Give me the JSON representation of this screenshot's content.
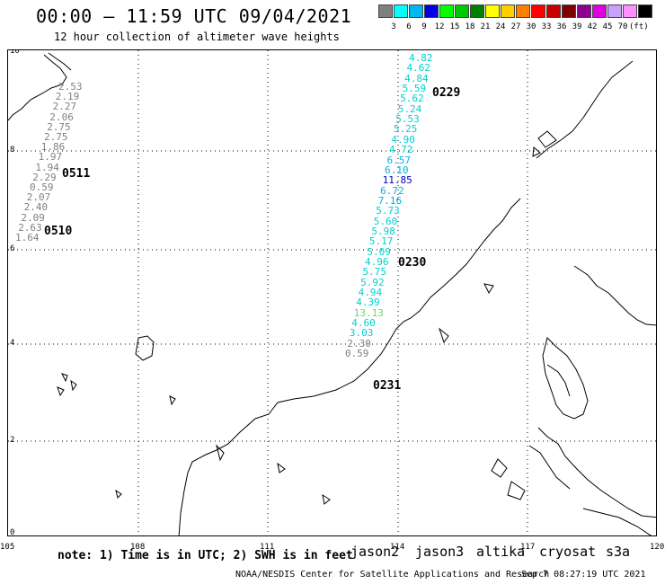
{
  "header": {
    "title": "00:00 – 11:59 UTC 09/04/2021",
    "subtitle": "12 hour collection of altimeter wave heights"
  },
  "colorbar": {
    "colors": [
      "#808080",
      "#00ffff",
      "#00b8f0",
      "#0000e0",
      "#00ff00",
      "#00c800",
      "#008000",
      "#ffff00",
      "#ffd000",
      "#ff8000",
      "#ff0000",
      "#c80000",
      "#800000",
      "#900090",
      "#e000e0",
      "#c8a0ff",
      "#ff90ff",
      "#000000"
    ],
    "labels": [
      "3",
      "6",
      "9",
      "12",
      "15",
      "18",
      "21",
      "24",
      "27",
      "30",
      "33",
      "36",
      "39",
      "42",
      "45",
      "70",
      "(ft)"
    ]
  },
  "axes": {
    "lat_labels": [
      "10",
      "8",
      "6",
      "4",
      "2",
      "0"
    ],
    "lon_labels": [
      "105",
      "108",
      "111",
      "114",
      "117",
      "120"
    ]
  },
  "passes": [
    {
      "id": "0229",
      "color": "#8b0000"
    },
    {
      "id": "0511",
      "color": "#008000"
    },
    {
      "id": "0510",
      "color": "#008000"
    },
    {
      "id": "0230",
      "color": "#8b0000"
    },
    {
      "id": "0231",
      "color": "#8b0000"
    }
  ],
  "track_left": {
    "values": [
      "2.53",
      "2.19",
      "2.27",
      "2.06",
      "2.75",
      "2.75",
      "1.86",
      "1.97",
      "1.94",
      "2.29",
      "0.59",
      "2.07",
      "2.40",
      "2.09",
      "2.63",
      "1.64"
    ],
    "color": "#808080"
  },
  "track_main": {
    "values": [
      {
        "v": "4.82",
        "c": "#00d0d0"
      },
      {
        "v": "4.62",
        "c": "#00d0d0"
      },
      {
        "v": "4.84",
        "c": "#00d0d0"
      },
      {
        "v": "5.59",
        "c": "#00d0d0"
      },
      {
        "v": "5.62",
        "c": "#00d0d0"
      },
      {
        "v": "5.24",
        "c": "#00d0d0"
      },
      {
        "v": "5.53",
        "c": "#00d0d0"
      },
      {
        "v": "5.25",
        "c": "#00d0d0"
      },
      {
        "v": "4.90",
        "c": "#00d0d0"
      },
      {
        "v": "4.72",
        "c": "#00d0d0"
      },
      {
        "v": "6.57",
        "c": "#00b0e8"
      },
      {
        "v": "6.10",
        "c": "#00b0e8"
      },
      {
        "v": "11.85",
        "c": "#0000c0"
      },
      {
        "v": "6.72",
        "c": "#00b0e8"
      },
      {
        "v": "7.16",
        "c": "#00b0e8"
      },
      {
        "v": "5.73",
        "c": "#00d0d0"
      },
      {
        "v": "5.60",
        "c": "#00d0d0"
      },
      {
        "v": "5.98",
        "c": "#00d0d0"
      },
      {
        "v": "5.17",
        "c": "#00d0d0"
      },
      {
        "v": "5.09",
        "c": "#00d0d0"
      },
      {
        "v": "4.96",
        "c": "#00d0d0"
      },
      {
        "v": "5.75",
        "c": "#00d0d0"
      },
      {
        "v": "5.92",
        "c": "#00d0d0"
      },
      {
        "v": "4.94",
        "c": "#00d0d0"
      },
      {
        "v": "4.39",
        "c": "#00d0d0"
      },
      {
        "v": "13.13",
        "c": "#60e060"
      },
      {
        "v": "4.60",
        "c": "#00d0d0"
      },
      {
        "v": "3.03",
        "c": "#00d0d0"
      },
      {
        "v": "2.30",
        "c": "#808080"
      },
      {
        "v": "0.59",
        "c": "#808080"
      }
    ]
  },
  "footer": {
    "note": "note: 1) Time is in UTC; 2) SWH is in feet",
    "satellites": [
      {
        "name": "jason2",
        "color": "#0000c0"
      },
      {
        "name": "jason3",
        "color": "#008000"
      },
      {
        "name": "altika",
        "color": "#ff8c00"
      },
      {
        "name": "cryosat",
        "color": "#e00000"
      },
      {
        "name": "s3a",
        "color": "#8b0000"
      }
    ],
    "credit": "NOAA/NESDIS Center for Satellite Applications and Research",
    "timestamp": "Sep  7 08:27:19 UTC 2021"
  }
}
